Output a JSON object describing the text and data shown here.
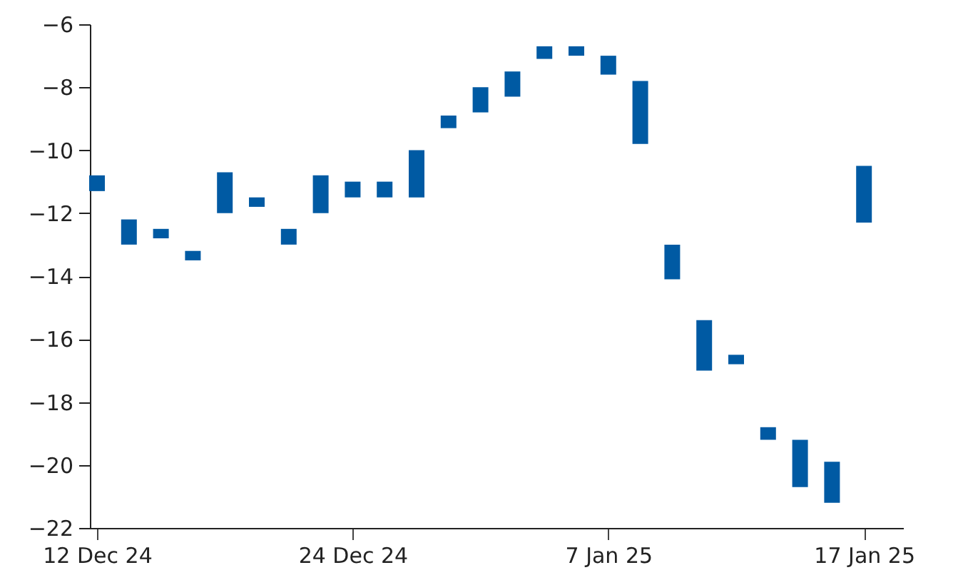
{
  "chart_data": {
    "type": "bar",
    "categories": [
      "12 Dec 24",
      null,
      null,
      null,
      null,
      null,
      null,
      null,
      "24 Dec 24",
      null,
      null,
      null,
      null,
      null,
      null,
      null,
      "7 Jan 25",
      null,
      null,
      null,
      null,
      null,
      null,
      null,
      "17 Jan 25"
    ],
    "base": [
      -11.3,
      -13.0,
      -12.8,
      -13.5,
      -12.0,
      -11.8,
      -13.0,
      -12.0,
      -11.5,
      -11.5,
      -11.5,
      -9.3,
      -8.8,
      -8.3,
      -7.1,
      -7.0,
      -7.6,
      -9.8,
      -14.1,
      -17.0,
      -16.8,
      -19.2,
      -20.7,
      -21.2,
      -12.3
    ],
    "values": [
      0.5,
      0.8,
      0.3,
      0.3,
      1.3,
      0.3,
      0.5,
      1.2,
      0.5,
      0.5,
      1.5,
      0.4,
      0.8,
      0.8,
      0.4,
      0.3,
      0.6,
      2.0,
      1.1,
      1.6,
      0.3,
      0.4,
      1.5,
      1.3,
      1.8
    ],
    "color": "#005aa3",
    "ylim": [
      -22,
      -6
    ],
    "yticks": [
      -22,
      -20,
      -18,
      -16,
      -14,
      -12,
      -10,
      -8,
      -6
    ]
  }
}
